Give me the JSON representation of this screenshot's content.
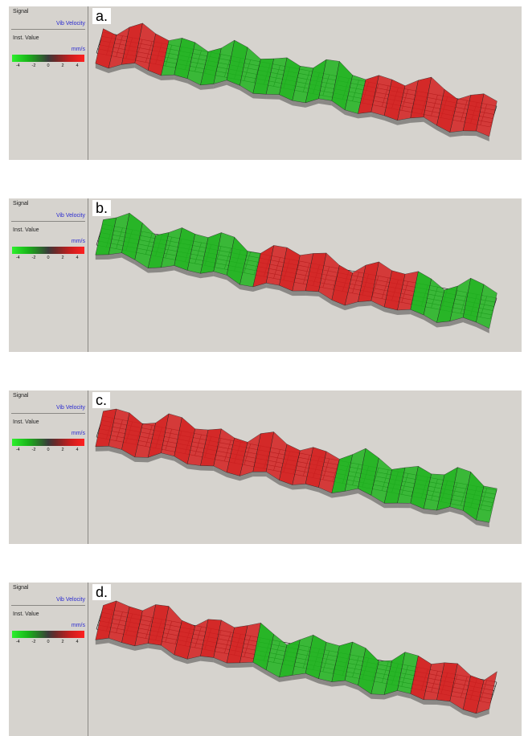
{
  "legend": {
    "signal_label": "Signal",
    "signal_value": "Vib Velocity",
    "inst_label": "Inst. Value",
    "unit": "mm/s",
    "ticks": [
      "-4",
      "-2",
      "0",
      "2",
      "4"
    ]
  },
  "panels": [
    {
      "tag": "a.",
      "pattern": [
        "red",
        "green",
        "green",
        "green",
        "red",
        "red"
      ]
    },
    {
      "tag": "b.",
      "pattern": [
        "green",
        "green",
        "red",
        "red",
        "green"
      ]
    },
    {
      "tag": "c.",
      "pattern": [
        "red",
        "red",
        "red",
        "green",
        "green"
      ]
    },
    {
      "tag": "d.",
      "pattern": [
        "red",
        "red",
        "green",
        "green",
        "red"
      ]
    }
  ],
  "colors": {
    "panel_bg": "#d6d3ce",
    "positive": "#d42020",
    "negative": "#1fb41f",
    "label_blue": "#2b2bd0"
  }
}
